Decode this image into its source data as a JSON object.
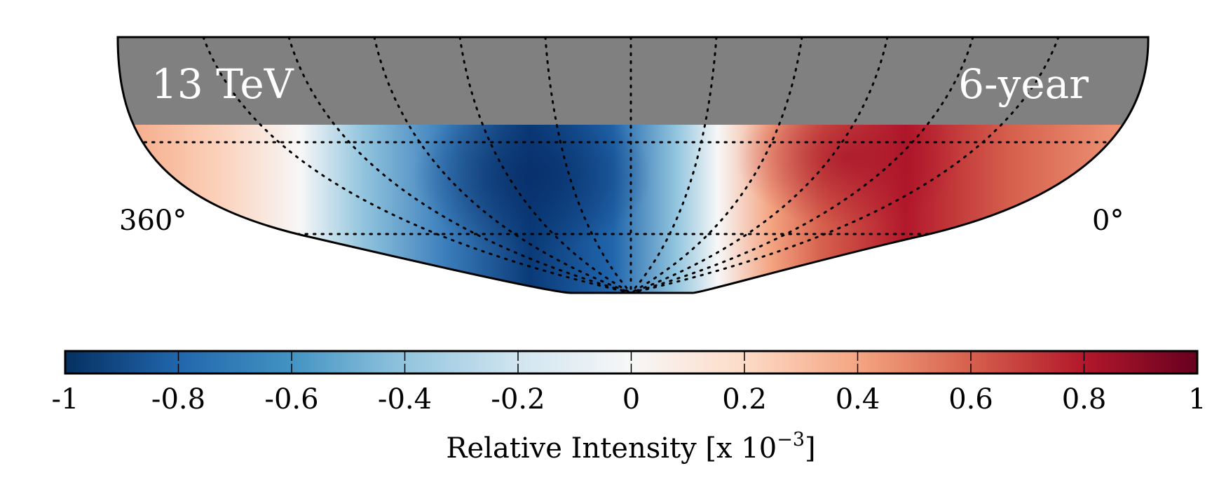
{
  "chart_data": {
    "type": "heatmap",
    "projection": "mollweide-sky-map",
    "coordinate_labels": {
      "left": "360°",
      "right": "0°"
    },
    "annotations": {
      "energy": "13 TeV",
      "exposure": "6-year"
    },
    "colorbar": {
      "range": [
        -1,
        1
      ],
      "ticks": [
        "-1",
        "-0.8",
        "-0.6",
        "-0.4",
        "-0.2",
        "0",
        "0.2",
        "0.4",
        "0.6",
        "0.8",
        "1"
      ],
      "tick_values": [
        -1,
        -0.8,
        -0.6,
        -0.4,
        -0.2,
        0,
        0.2,
        0.4,
        0.6,
        0.8,
        1
      ],
      "label_prefix": "Relative Intensity [x 10",
      "label_exponent": "−3",
      "label_suffix": "]",
      "colors": [
        "#053061",
        "#2166ac",
        "#4393c3",
        "#92c5de",
        "#d1e5f0",
        "#f7f7f7",
        "#fddbc7",
        "#f4a582",
        "#d6604d",
        "#b2182b",
        "#67001f"
      ]
    },
    "features": {
      "deficit_region_color": "#08306b",
      "excess_region_color": "#b2182b",
      "unobserved_region_color": "#808080",
      "grid": "dotted"
    }
  }
}
